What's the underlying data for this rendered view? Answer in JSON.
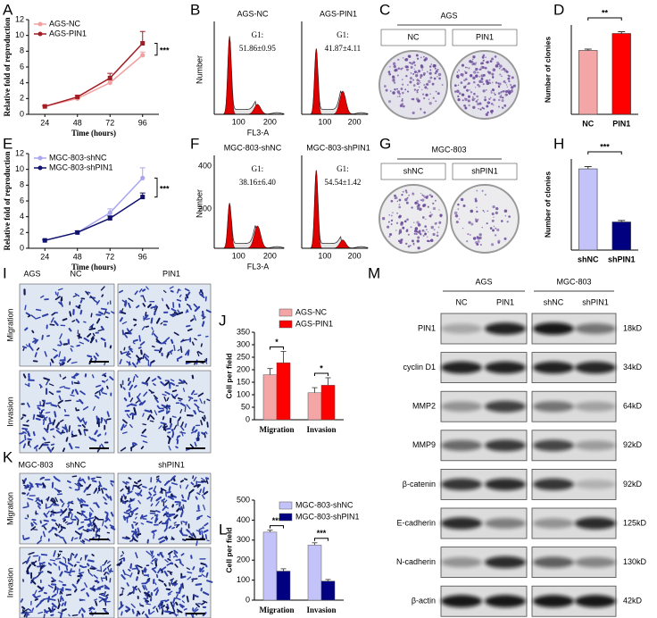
{
  "chart_data": [
    {
      "panel": "A",
      "type": "line",
      "x": [
        24,
        48,
        72,
        96
      ],
      "xlim": [
        12,
        108
      ],
      "xticks": [
        24,
        48,
        72,
        96
      ],
      "ylim": [
        0,
        12
      ],
      "yticks": [
        0,
        2,
        4,
        6,
        8,
        10,
        12
      ],
      "x_label": "Time (hours)",
      "y_label": "Relative fold of reproduction",
      "annotation": "***",
      "legend": "upper left",
      "series": [
        {
          "name": "AGS-NC",
          "color": "#f2a0a0",
          "values": [
            1,
            2,
            4,
            7.5
          ],
          "errors": [
            0.1,
            0.2,
            0.3,
            0.4
          ]
        },
        {
          "name": "AGS-PIN1",
          "color": "#a31d24",
          "values": [
            1,
            2.2,
            4.6,
            9
          ],
          "errors": [
            0.1,
            0.2,
            0.6,
            1.5
          ]
        }
      ]
    },
    {
      "panel": "D",
      "type": "bar",
      "categories": [
        "NC",
        "PIN1"
      ],
      "values": [
        143,
        181
      ],
      "errors": [
        3,
        4
      ],
      "colors": [
        "#f4a6a6",
        "#ff0000"
      ],
      "ylim": [
        0,
        200
      ],
      "y_label": "Number of clonies",
      "annotation": "**"
    },
    {
      "panel": "E",
      "type": "line",
      "x": [
        24,
        48,
        72,
        96
      ],
      "xlim": [
        12,
        108
      ],
      "xticks": [
        24,
        48,
        72,
        96
      ],
      "ylim": [
        0,
        12
      ],
      "yticks": [
        0,
        2,
        4,
        6,
        8,
        10,
        12
      ],
      "x_label": "Time (hours)",
      "y_label": "Relative fold of reproduction",
      "annotation": "***",
      "legend": "upper left",
      "series": [
        {
          "name": "MGC-803-shNC",
          "color": "#a9a6f0",
          "values": [
            1,
            2,
            4.5,
            8.9
          ],
          "errors": [
            0.1,
            0.2,
            0.5,
            1.3
          ]
        },
        {
          "name": "MGC-803-shPIN1",
          "color": "#11116e",
          "values": [
            1,
            2,
            3.8,
            6.5
          ],
          "errors": [
            0.1,
            0.2,
            0.3,
            0.5
          ]
        }
      ]
    },
    {
      "panel": "H",
      "type": "bar",
      "categories": [
        "shNC",
        "shPIN1"
      ],
      "values": [
        107,
        37
      ],
      "errors": [
        3,
        2
      ],
      "colors": [
        "#c3c3fa",
        "#000080"
      ],
      "ylim": [
        0,
        120
      ],
      "y_label": "Number of clonies",
      "annotation": "***"
    },
    {
      "panel": "J",
      "type": "bar",
      "categories": [
        "Migration",
        "Invasion"
      ],
      "ylim": [
        0,
        350
      ],
      "yticks": [
        0,
        50,
        100,
        150,
        200,
        250,
        300,
        350
      ],
      "y_label": "Cell per field",
      "annotations": [
        "*",
        "*"
      ],
      "legend": "upper right",
      "series": [
        {
          "name": "AGS-NC",
          "color": "#f4a6a6",
          "values": [
            180,
            108
          ],
          "errors": [
            25,
            20
          ]
        },
        {
          "name": "AGS-PIN1",
          "color": "#ff0000",
          "values": [
            228,
            138
          ],
          "errors": [
            45,
            30
          ]
        }
      ]
    },
    {
      "panel": "L",
      "type": "bar",
      "categories": [
        "Migration",
        "Invasion"
      ],
      "ylim": [
        0,
        500
      ],
      "yticks": [
        0,
        100,
        200,
        300,
        400,
        500
      ],
      "y_label": "Cell per field",
      "annotations": [
        "***",
        "***"
      ],
      "legend": "upper right",
      "series": [
        {
          "name": "MGC-803-shNC",
          "color": "#c3c3fa",
          "values": [
            340,
            275
          ],
          "errors": [
            10,
            12
          ]
        },
        {
          "name": "MGC-803-shPIN1",
          "color": "#000080",
          "values": [
            145,
            95
          ],
          "errors": [
            12,
            8
          ]
        }
      ]
    }
  ],
  "flow": [
    {
      "panel": "B",
      "y_label": "Number",
      "x_label": "FL3-A",
      "plots": [
        {
          "title": "AGS-NC",
          "g1_label": "G1:",
          "g1_value": "51.86±0.95",
          "xtick_labels": [
            "100",
            "200"
          ]
        },
        {
          "title": "AGS-PIN1",
          "g1_label": "G1:",
          "g1_value": "41.87±4.11",
          "xtick_labels": [
            "100",
            "200"
          ]
        }
      ]
    },
    {
      "panel": "F",
      "y_label": "Number",
      "x_label": "FL3-A",
      "plots": [
        {
          "title": "MGC-803-shNC",
          "g1_label": "G1:",
          "g1_value": "38.16±6.40",
          "xtick_labels": [
            "100",
            "200"
          ],
          "ytick_labels": [
            "400",
            "200"
          ]
        },
        {
          "title": "MGC-803-shPIN1",
          "g1_label": "G1:",
          "g1_value": "54.54±1.42",
          "xtick_labels": [
            "100",
            "200"
          ]
        }
      ]
    }
  ],
  "colonies": [
    {
      "panel": "C",
      "title": "AGS",
      "labels": [
        "NC",
        "PIN1"
      ]
    },
    {
      "panel": "G",
      "title": "MGC-803",
      "labels": [
        "shNC",
        "shPIN1"
      ]
    }
  ],
  "micrographs": [
    {
      "panel": "I",
      "title": "AGS",
      "columns": [
        "NC",
        "PIN1"
      ],
      "rows": [
        "Migration",
        "Invasion"
      ]
    },
    {
      "panel": "K",
      "title": "MGC-803",
      "columns": [
        "shNC",
        "shPIN1"
      ],
      "rows": [
        "Migration",
        "Invasion"
      ]
    }
  ],
  "western": {
    "panel": "M",
    "groups": [
      {
        "name": "AGS",
        "lanes": [
          "NC",
          "PIN1"
        ]
      },
      {
        "name": "MGC-803",
        "lanes": [
          "shNC",
          "shPIN1"
        ]
      }
    ],
    "rows": [
      {
        "protein": "PIN1",
        "size": "18kD"
      },
      {
        "protein": "cyclin D1",
        "size": "34kD"
      },
      {
        "protein": "MMP2",
        "size": "64kD"
      },
      {
        "protein": "MMP9",
        "size": "92kD"
      },
      {
        "protein": "β-catenin",
        "size": "92kD"
      },
      {
        "protein": "E-cadherin",
        "size": "125kD"
      },
      {
        "protein": "N-cadherin",
        "size": "130kD"
      },
      {
        "protein": "β-actin",
        "size": "42kD"
      }
    ]
  }
}
